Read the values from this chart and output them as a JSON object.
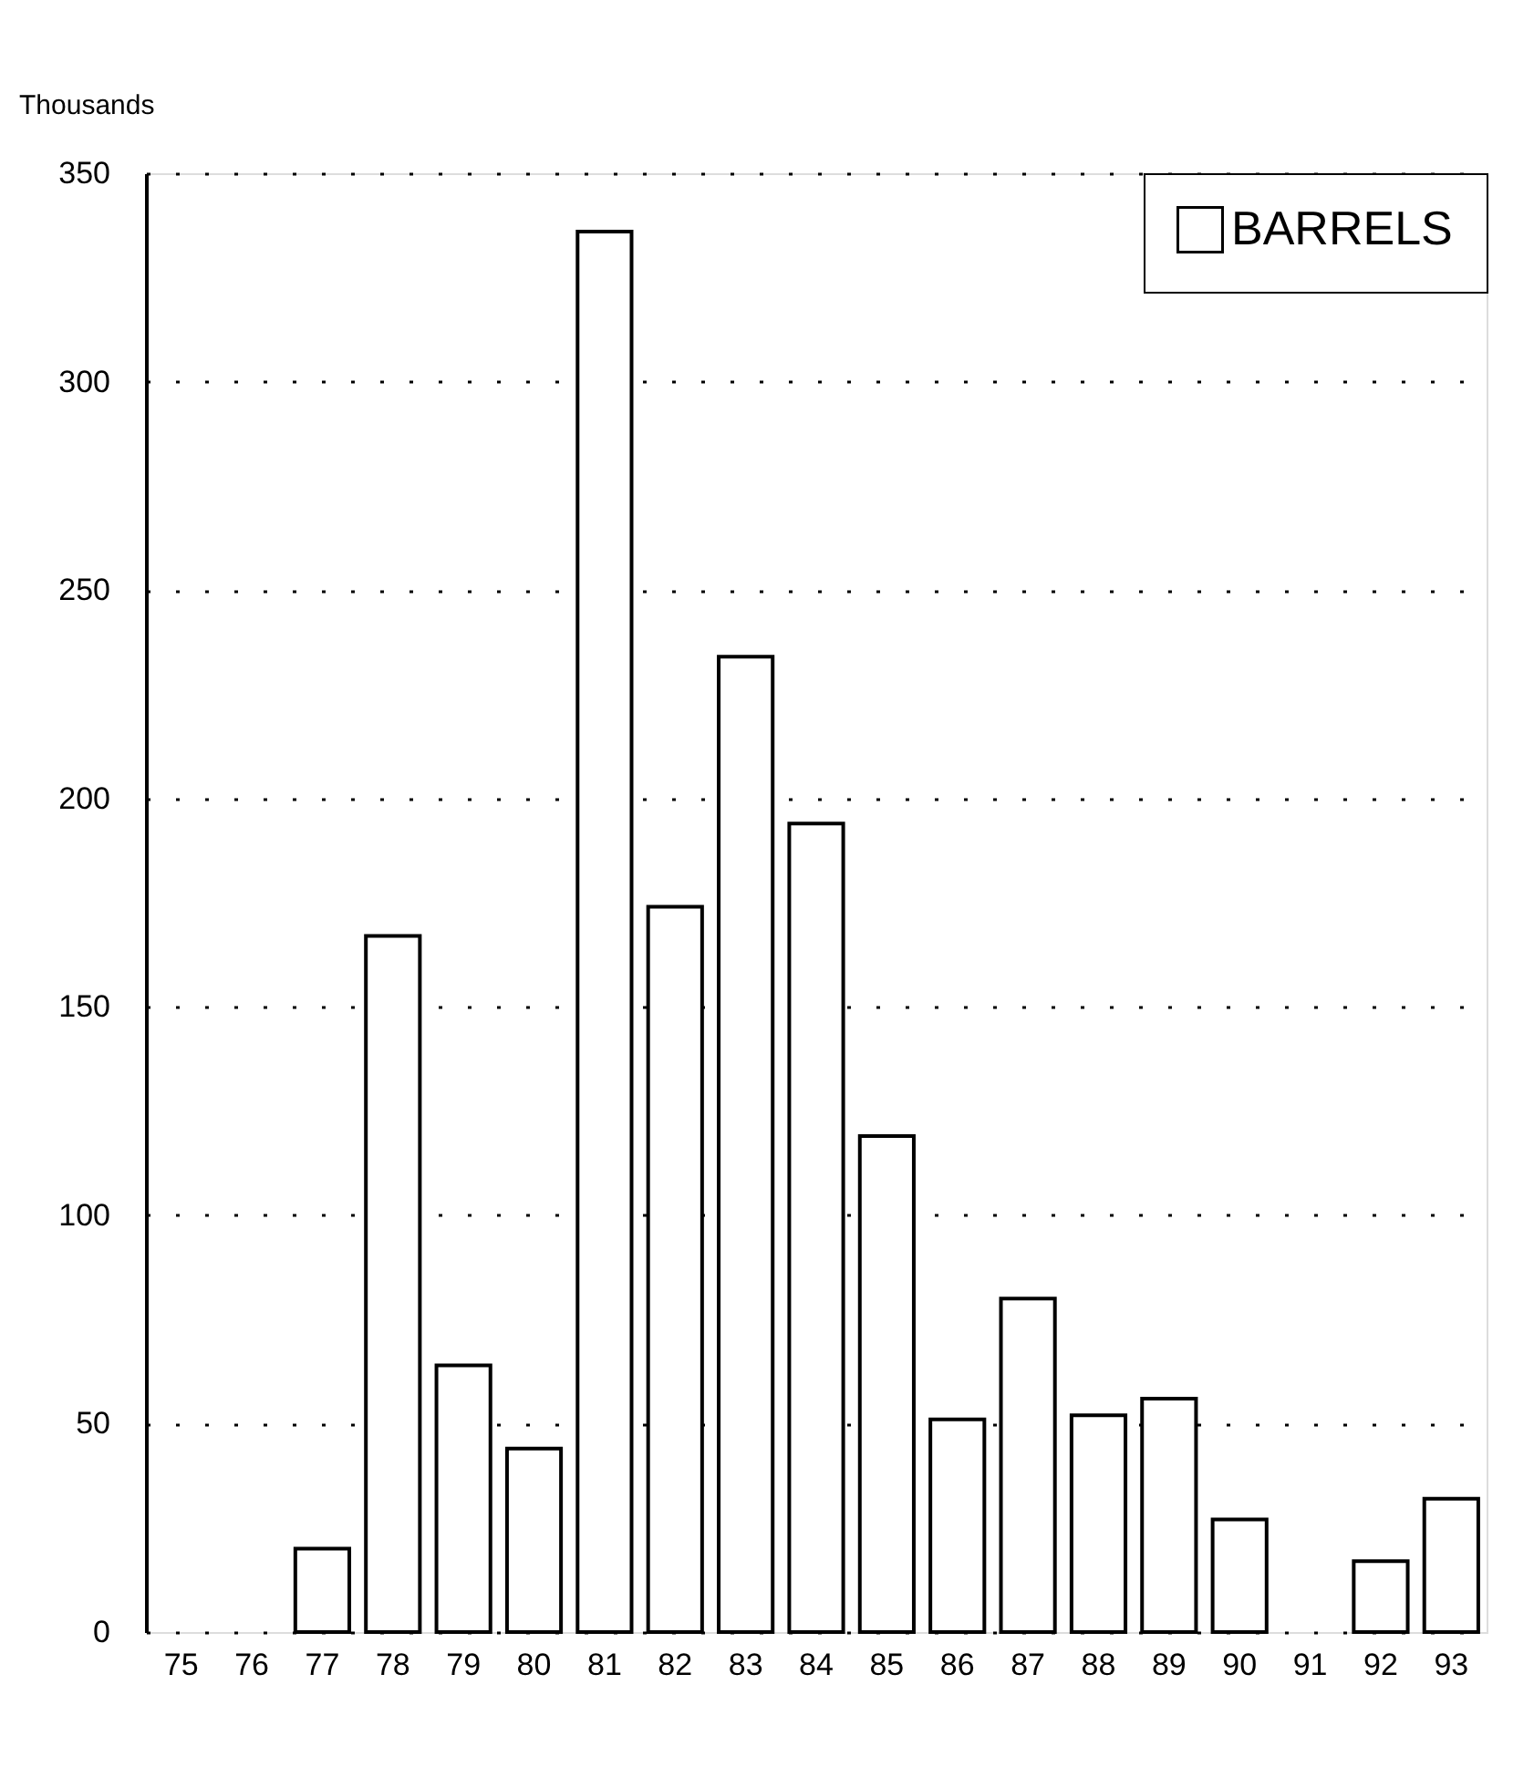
{
  "chart_data": {
    "type": "bar",
    "ylabel": "Thousands",
    "categories": [
      "75",
      "76",
      "77",
      "78",
      "79",
      "80",
      "81",
      "82",
      "83",
      "84",
      "85",
      "86",
      "87",
      "88",
      "89",
      "90",
      "91",
      "92",
      "93"
    ],
    "series": [
      {
        "name": "BARRELS",
        "color": "#ffffff",
        "values": [
          0,
          0,
          20,
          167,
          64,
          44,
          336,
          174,
          234,
          194,
          119,
          51,
          80,
          52,
          56,
          27,
          0,
          17,
          32
        ]
      }
    ],
    "ylim": [
      0,
      350
    ],
    "yticks": [
      0,
      50,
      100,
      150,
      200,
      250,
      300,
      350
    ],
    "grid": "y",
    "legend": "top right"
  }
}
